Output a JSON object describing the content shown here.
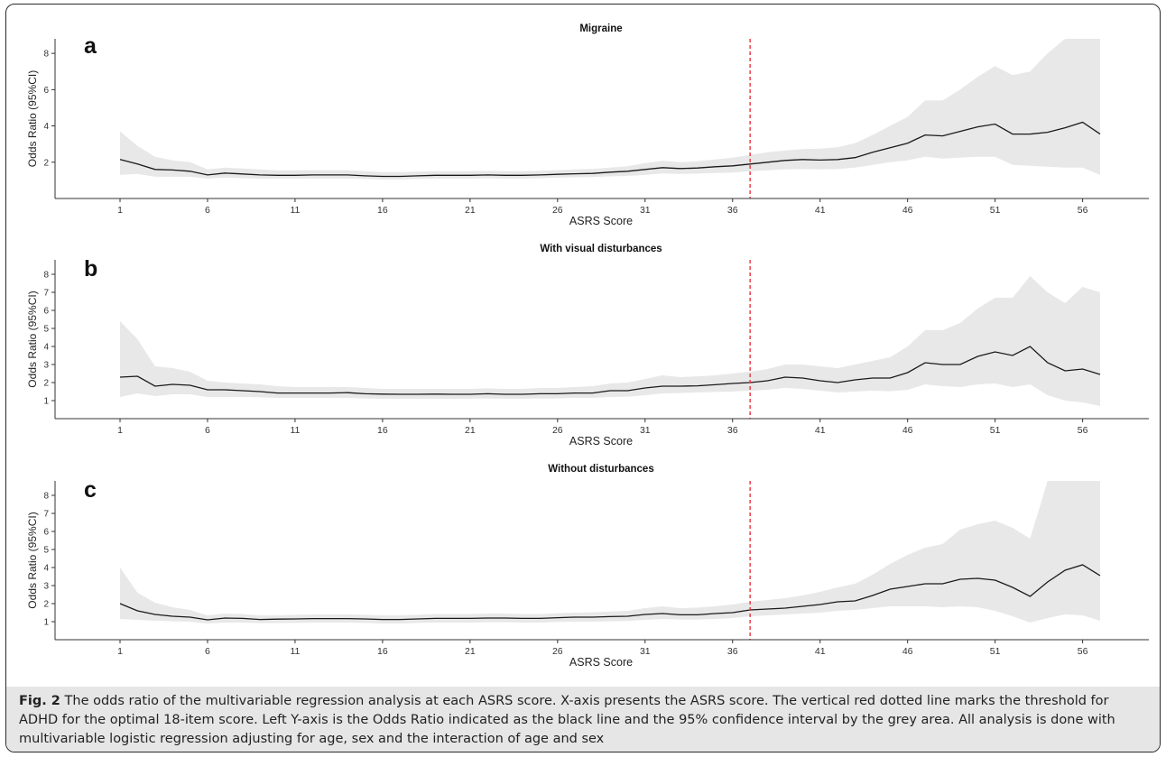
{
  "figure": {
    "caption_label": "Fig. 2",
    "caption_text": " The odds ratio of the multivariable regression analysis at each ASRS score. X-axis presents the ASRS score. The vertical red dotted line marks the threshold for ADHD for the optimal 18-item score. Left Y-axis is the Odds Ratio indicated as the black line and the 95% confidence interval by the grey area. All analysis is done with multivariable logistic regression adjusting for age, sex and the interaction of age and sex"
  },
  "colors": {
    "line": "#1a1a1a",
    "ci_fill": "#e8e8e8",
    "threshold": "#e8333b",
    "axis": "#333333"
  },
  "chart_data": [
    {
      "type": "line",
      "panel": "a",
      "title": "Migraine",
      "xlabel": "ASRS Score",
      "ylabel": "Odds Ratio (95%CI)",
      "xlim": [
        1,
        57
      ],
      "ylim": [
        0,
        8.8
      ],
      "xticks": [
        1,
        6,
        11,
        16,
        21,
        26,
        31,
        36,
        41,
        46,
        51,
        56
      ],
      "yticks": [
        2,
        4,
        6,
        8
      ],
      "threshold_x": 37,
      "x": [
        1,
        2,
        3,
        4,
        5,
        6,
        7,
        8,
        9,
        10,
        11,
        12,
        13,
        14,
        15,
        16,
        17,
        18,
        19,
        20,
        21,
        22,
        23,
        24,
        25,
        26,
        27,
        28,
        29,
        30,
        31,
        32,
        33,
        34,
        35,
        36,
        37,
        38,
        39,
        40,
        41,
        42,
        43,
        44,
        45,
        46,
        47,
        48,
        49,
        50,
        51,
        52,
        53,
        54,
        55,
        56,
        57
      ],
      "series": [
        {
          "values": [
            2.15,
            1.9,
            1.6,
            1.57,
            1.5,
            1.3,
            1.4,
            1.35,
            1.3,
            1.28,
            1.28,
            1.3,
            1.3,
            1.3,
            1.25,
            1.22,
            1.22,
            1.25,
            1.28,
            1.28,
            1.28,
            1.3,
            1.28,
            1.28,
            1.3,
            1.33,
            1.36,
            1.38,
            1.45,
            1.5,
            1.6,
            1.7,
            1.65,
            1.68,
            1.75,
            1.8,
            1.9,
            2.0,
            2.1,
            2.15,
            2.12,
            2.15,
            2.25,
            2.55,
            2.8,
            3.05,
            3.5,
            3.45,
            3.7,
            3.95,
            4.1,
            3.55,
            3.55,
            3.65,
            3.9,
            4.2,
            3.55
          ],
          "lower": [
            1.3,
            1.35,
            1.2,
            1.2,
            1.2,
            1.1,
            1.15,
            1.12,
            1.1,
            1.1,
            1.1,
            1.1,
            1.1,
            1.1,
            1.08,
            1.05,
            1.05,
            1.08,
            1.1,
            1.1,
            1.1,
            1.12,
            1.1,
            1.1,
            1.12,
            1.15,
            1.17,
            1.18,
            1.22,
            1.25,
            1.3,
            1.38,
            1.35,
            1.37,
            1.4,
            1.43,
            1.5,
            1.55,
            1.6,
            1.62,
            1.6,
            1.62,
            1.7,
            1.85,
            2.0,
            2.1,
            2.3,
            2.2,
            2.25,
            2.3,
            2.3,
            1.85,
            1.8,
            1.75,
            1.7,
            1.7,
            1.3
          ],
          "upper": [
            3.7,
            2.9,
            2.3,
            2.1,
            2.0,
            1.6,
            1.7,
            1.65,
            1.6,
            1.55,
            1.55,
            1.55,
            1.55,
            1.55,
            1.5,
            1.45,
            1.45,
            1.48,
            1.5,
            1.5,
            1.5,
            1.52,
            1.5,
            1.5,
            1.52,
            1.56,
            1.6,
            1.63,
            1.7,
            1.78,
            1.95,
            2.08,
            2.0,
            2.05,
            2.15,
            2.25,
            2.4,
            2.55,
            2.65,
            2.72,
            2.75,
            2.82,
            3.05,
            3.5,
            4.0,
            4.5,
            5.4,
            5.4,
            6.0,
            6.7,
            7.3,
            6.8,
            7.0,
            8.0,
            8.8,
            8.8,
            8.8
          ]
        }
      ]
    },
    {
      "type": "line",
      "panel": "b",
      "title": "With visual disturbances",
      "xlabel": "ASRS Score",
      "ylabel": "Odds Ratio (95%CI)",
      "xlim": [
        1,
        57
      ],
      "ylim": [
        0,
        8.8
      ],
      "xticks": [
        1,
        6,
        11,
        16,
        21,
        26,
        31,
        36,
        41,
        46,
        51,
        56
      ],
      "yticks": [
        1,
        2,
        3,
        4,
        5,
        6,
        7,
        8
      ],
      "threshold_x": 37,
      "x": [
        1,
        2,
        3,
        4,
        5,
        6,
        7,
        8,
        9,
        10,
        11,
        12,
        13,
        14,
        15,
        16,
        17,
        18,
        19,
        20,
        21,
        22,
        23,
        24,
        25,
        26,
        27,
        28,
        29,
        30,
        31,
        32,
        33,
        34,
        35,
        36,
        37,
        38,
        39,
        40,
        41,
        42,
        43,
        44,
        45,
        46,
        47,
        48,
        49,
        50,
        51,
        52,
        53,
        54,
        55,
        56,
        57
      ],
      "series": [
        {
          "values": [
            2.3,
            2.35,
            1.8,
            1.9,
            1.85,
            1.6,
            1.6,
            1.55,
            1.5,
            1.42,
            1.42,
            1.42,
            1.42,
            1.44,
            1.38,
            1.36,
            1.35,
            1.35,
            1.36,
            1.35,
            1.35,
            1.38,
            1.35,
            1.35,
            1.38,
            1.38,
            1.42,
            1.42,
            1.55,
            1.55,
            1.7,
            1.8,
            1.8,
            1.82,
            1.88,
            1.95,
            2.0,
            2.1,
            2.3,
            2.25,
            2.1,
            2.0,
            2.15,
            2.25,
            2.25,
            2.55,
            3.1,
            3.0,
            3.0,
            3.45,
            3.7,
            3.5,
            4.0,
            3.1,
            2.65,
            2.75,
            2.45
          ],
          "lower": [
            1.2,
            1.4,
            1.25,
            1.35,
            1.35,
            1.2,
            1.2,
            1.2,
            1.18,
            1.15,
            1.15,
            1.15,
            1.15,
            1.15,
            1.12,
            1.1,
            1.1,
            1.1,
            1.1,
            1.1,
            1.1,
            1.12,
            1.1,
            1.1,
            1.12,
            1.12,
            1.15,
            1.15,
            1.2,
            1.22,
            1.3,
            1.4,
            1.42,
            1.45,
            1.48,
            1.5,
            1.55,
            1.6,
            1.7,
            1.65,
            1.55,
            1.45,
            1.5,
            1.55,
            1.52,
            1.6,
            1.9,
            1.8,
            1.75,
            1.9,
            1.95,
            1.75,
            1.9,
            1.3,
            1.0,
            0.9,
            0.7
          ],
          "upper": [
            5.4,
            4.4,
            2.9,
            2.8,
            2.6,
            2.1,
            2.0,
            1.95,
            1.9,
            1.8,
            1.75,
            1.75,
            1.75,
            1.75,
            1.7,
            1.65,
            1.65,
            1.65,
            1.65,
            1.65,
            1.65,
            1.68,
            1.65,
            1.65,
            1.7,
            1.7,
            1.75,
            1.8,
            1.95,
            2.0,
            2.2,
            2.4,
            2.3,
            2.35,
            2.4,
            2.5,
            2.6,
            2.75,
            3.0,
            3.0,
            2.9,
            2.8,
            3.0,
            3.2,
            3.4,
            4.0,
            4.9,
            4.9,
            5.3,
            6.1,
            6.7,
            6.7,
            7.9,
            7.0,
            6.4,
            7.3,
            7.0
          ]
        }
      ]
    },
    {
      "type": "line",
      "panel": "c",
      "title": "Without disturbances",
      "xlabel": "ASRS Score",
      "ylabel": "Odds Ratio (95%CI)",
      "xlim": [
        1,
        57
      ],
      "ylim": [
        0,
        8.8
      ],
      "xticks": [
        1,
        6,
        11,
        16,
        21,
        26,
        31,
        36,
        41,
        46,
        51,
        56
      ],
      "yticks": [
        1,
        2,
        3,
        4,
        5,
        6,
        7,
        8
      ],
      "threshold_x": 37,
      "x": [
        1,
        2,
        3,
        4,
        5,
        6,
        7,
        8,
        9,
        10,
        11,
        12,
        13,
        14,
        15,
        16,
        17,
        18,
        19,
        20,
        21,
        22,
        23,
        24,
        25,
        26,
        27,
        28,
        29,
        30,
        31,
        32,
        33,
        34,
        35,
        36,
        37,
        38,
        39,
        40,
        41,
        42,
        43,
        44,
        45,
        46,
        47,
        48,
        49,
        50,
        51,
        52,
        53,
        54,
        55,
        56,
        57
      ],
      "series": [
        {
          "values": [
            2.0,
            1.6,
            1.4,
            1.3,
            1.25,
            1.1,
            1.2,
            1.18,
            1.12,
            1.14,
            1.15,
            1.17,
            1.17,
            1.17,
            1.15,
            1.12,
            1.12,
            1.15,
            1.18,
            1.18,
            1.18,
            1.2,
            1.2,
            1.18,
            1.18,
            1.22,
            1.25,
            1.25,
            1.28,
            1.3,
            1.4,
            1.45,
            1.38,
            1.38,
            1.45,
            1.5,
            1.65,
            1.7,
            1.75,
            1.85,
            1.95,
            2.1,
            2.15,
            2.45,
            2.8,
            2.95,
            3.1,
            3.1,
            3.35,
            3.4,
            3.3,
            2.9,
            2.4,
            3.2,
            3.85,
            4.15,
            3.55
          ],
          "lower": [
            1.15,
            1.1,
            1.05,
            1.02,
            1.0,
            0.9,
            0.95,
            0.95,
            0.92,
            0.92,
            0.93,
            0.95,
            0.95,
            0.95,
            0.93,
            0.9,
            0.9,
            0.93,
            0.95,
            0.95,
            0.95,
            0.97,
            0.97,
            0.95,
            0.95,
            0.98,
            1.0,
            1.0,
            1.02,
            1.04,
            1.1,
            1.15,
            1.12,
            1.12,
            1.15,
            1.2,
            1.3,
            1.35,
            1.4,
            1.45,
            1.5,
            1.6,
            1.65,
            1.75,
            1.85,
            1.85,
            1.85,
            1.8,
            1.85,
            1.8,
            1.6,
            1.3,
            0.95,
            1.2,
            1.4,
            1.35,
            1.05
          ],
          "upper": [
            4.0,
            2.6,
            2.05,
            1.8,
            1.65,
            1.35,
            1.45,
            1.42,
            1.35,
            1.35,
            1.38,
            1.4,
            1.4,
            1.4,
            1.38,
            1.35,
            1.35,
            1.38,
            1.42,
            1.42,
            1.42,
            1.45,
            1.45,
            1.42,
            1.42,
            1.47,
            1.5,
            1.52,
            1.56,
            1.6,
            1.75,
            1.85,
            1.75,
            1.78,
            1.85,
            1.95,
            2.1,
            2.2,
            2.3,
            2.45,
            2.65,
            2.9,
            3.1,
            3.6,
            4.2,
            4.7,
            5.1,
            5.3,
            6.1,
            6.4,
            6.6,
            6.2,
            5.6,
            8.8,
            8.8,
            8.8,
            8.8
          ]
        }
      ]
    }
  ]
}
